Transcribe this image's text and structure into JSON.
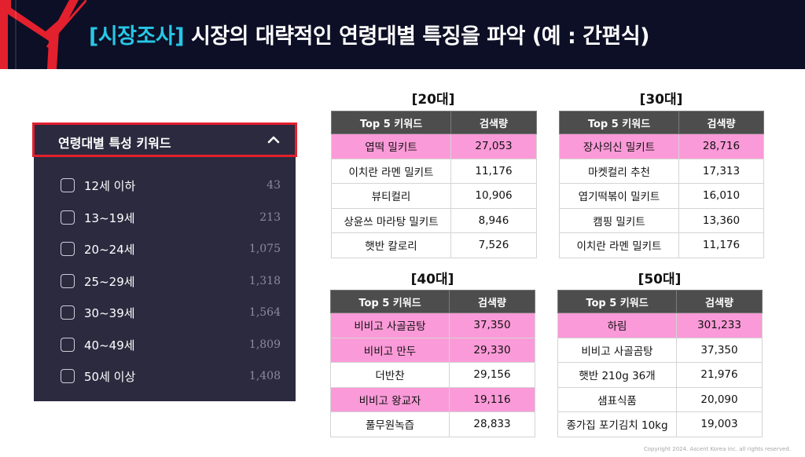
{
  "header": {
    "tag": "[시장조사]",
    "title": " 시장의 대략적인 연령대별 특징을 파악 (예 : 간편식)"
  },
  "filter_panel": {
    "title": "연령대별 특성 키워드",
    "chevron_icon": "chevron-up-icon",
    "items": [
      {
        "label": "12세 이하",
        "count": "43"
      },
      {
        "label": "13~19세",
        "count": "213"
      },
      {
        "label": "20~24세",
        "count": "1,075"
      },
      {
        "label": "25~29세",
        "count": "1,318"
      },
      {
        "label": "30~39세",
        "count": "1,564"
      },
      {
        "label": "40~49세",
        "count": "1,809"
      },
      {
        "label": "50세 이상",
        "count": "1,408"
      }
    ]
  },
  "tables": [
    {
      "title": "[20대]",
      "headers": [
        "Top 5 키워드",
        "검색량"
      ],
      "rows": [
        {
          "keyword": "엽떡 밀키트",
          "volume": "27,053",
          "highlight": true
        },
        {
          "keyword": "이치란 라멘 밀키트",
          "volume": "11,176",
          "highlight": false
        },
        {
          "keyword": "뷰티컬리",
          "volume": "10,906",
          "highlight": false
        },
        {
          "keyword": "상윤쓰 마라탕 밀키트",
          "volume": "8,946",
          "highlight": false
        },
        {
          "keyword": "햇반 칼로리",
          "volume": "7,526",
          "highlight": false
        }
      ]
    },
    {
      "title": "[30대]",
      "headers": [
        "Top 5 키워드",
        "검색량"
      ],
      "rows": [
        {
          "keyword": "장사의신 밀키트",
          "volume": "28,716",
          "highlight": true
        },
        {
          "keyword": "마켓컬리 추천",
          "volume": "17,313",
          "highlight": false
        },
        {
          "keyword": "엽기떡볶이 밀키트",
          "volume": "16,010",
          "highlight": false
        },
        {
          "keyword": "캠핑 밀키트",
          "volume": "13,360",
          "highlight": false
        },
        {
          "keyword": "이치란 라멘 밀키트",
          "volume": "11,176",
          "highlight": false
        }
      ]
    },
    {
      "title": "[40대]",
      "headers": [
        "Top 5 키워드",
        "검색량"
      ],
      "rows": [
        {
          "keyword": "비비고 사골곰탕",
          "volume": "37,350",
          "highlight": true
        },
        {
          "keyword": "비비고 만두",
          "volume": "29,330",
          "highlight": true
        },
        {
          "keyword": "더반찬",
          "volume": "29,156",
          "highlight": false
        },
        {
          "keyword": "비비고 왕교자",
          "volume": "19,116",
          "highlight": true
        },
        {
          "keyword": "풀무원녹즙",
          "volume": "28,833",
          "highlight": false
        }
      ]
    },
    {
      "title": "[50대]",
      "headers": [
        "Top 5 키워드",
        "검색량"
      ],
      "rows": [
        {
          "keyword": "하림",
          "volume": "301,233",
          "highlight": true
        },
        {
          "keyword": "비비고 사골곰탕",
          "volume": "37,350",
          "highlight": false
        },
        {
          "keyword": "햇반 210g 36개",
          "volume": "21,976",
          "highlight": false
        },
        {
          "keyword": "샘표식품",
          "volume": "20,090",
          "highlight": false
        },
        {
          "keyword": "종가집 포기김치 10kg",
          "volume": "19,003",
          "highlight": false
        }
      ]
    }
  ],
  "footer": "Copyright 2024. Ascent Korea inc. all rights reserved.",
  "colors": {
    "header_bg": "#0c0f25",
    "tag_cyan": "#27c7e6",
    "accent_red": "#e3202e",
    "panel_bg": "#2c2a3f",
    "highlight_pink": "#fb9ad8",
    "table_header": "#4d4d4d"
  }
}
